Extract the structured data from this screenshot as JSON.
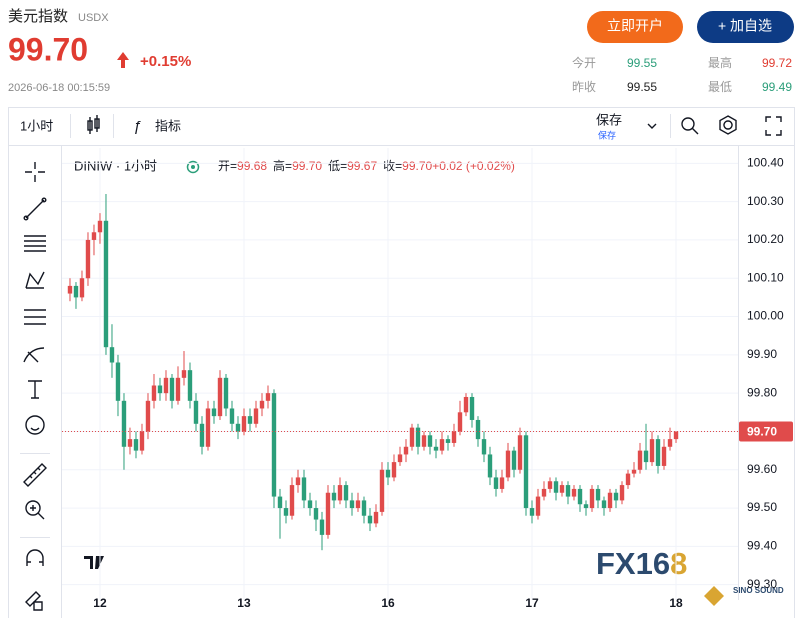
{
  "header": {
    "title": "美元指数",
    "symbol": "USDX",
    "price": "99.70",
    "change": "+0.15%",
    "datetime": "2026-06-18 00:15:59",
    "buttons": [
      "立即开户",
      "+ 加自选"
    ],
    "stats": [
      {
        "label": "今开",
        "value": "99.55"
      },
      {
        "label": "最高",
        "value": "99.72"
      },
      {
        "label": "昨收",
        "value": "99.55"
      },
      {
        "label": "最低",
        "value": "99.49"
      }
    ]
  },
  "toolbar": {
    "interval": "1小时",
    "indicators": "指标",
    "save": "保存",
    "save_sub": "保存"
  },
  "watermark": {
    "main": "FX16",
    "accent": "8",
    "sub": "SINO SOUND"
  },
  "chart_data": {
    "type": "candlestick",
    "title": "DINIW · 1小时",
    "ohlc_legend": [
      {
        "label": "开=",
        "value": "99.68"
      },
      {
        "label": "高=",
        "value": "99.70"
      },
      {
        "label": "低=",
        "value": "99.67"
      },
      {
        "label": "收=",
        "value": "99.70"
      },
      {
        "label": "",
        "value": "+0.02 (+0.02%)"
      }
    ],
    "up_color": "#e04b4b",
    "down_color": "#2b9e7a",
    "xlim": [
      -1.33,
      111.33
    ],
    "xticks": [
      {
        "value": 5,
        "label": "12"
      },
      {
        "value": 29,
        "label": "13"
      },
      {
        "value": 53,
        "label": "16"
      },
      {
        "value": 77,
        "label": "17"
      },
      {
        "value": 101,
        "label": "18"
      }
    ],
    "ylim": [
      99.26,
      100.44
    ],
    "yticks": [
      {
        "value": 99.3,
        "label": "99.30"
      },
      {
        "value": 99.4,
        "label": "99.40"
      },
      {
        "value": 99.5,
        "label": "99.50"
      },
      {
        "value": 99.6,
        "label": "99.60"
      },
      {
        "value": 99.7,
        "label": "99.70"
      },
      {
        "value": 99.8,
        "label": "99.80"
      },
      {
        "value": 99.9,
        "label": "99.90"
      },
      {
        "value": 100.0,
        "label": "100.00"
      },
      {
        "value": 100.1,
        "label": "100.10"
      },
      {
        "value": 100.2,
        "label": "100.20"
      },
      {
        "value": 100.3,
        "label": "100.30"
      },
      {
        "value": 100.4,
        "label": "100.40"
      }
    ],
    "grid": true,
    "last_price": 99.7,
    "last_price_label": "99.70",
    "candles": [
      [
        100.06,
        100.1,
        100.04,
        100.08
      ],
      [
        100.08,
        100.09,
        100.02,
        100.05
      ],
      [
        100.05,
        100.12,
        100.04,
        100.1
      ],
      [
        100.1,
        100.22,
        100.08,
        100.2
      ],
      [
        100.2,
        100.24,
        100.16,
        100.22
      ],
      [
        100.22,
        100.27,
        100.19,
        100.25
      ],
      [
        100.25,
        100.32,
        99.9,
        99.92
      ],
      [
        99.92,
        99.98,
        99.84,
        99.88
      ],
      [
        99.88,
        99.9,
        99.74,
        99.78
      ],
      [
        99.78,
        99.8,
        99.6,
        99.66
      ],
      [
        99.66,
        99.71,
        99.64,
        99.68
      ],
      [
        99.68,
        99.7,
        99.63,
        99.65
      ],
      [
        99.65,
        99.72,
        99.64,
        99.7
      ],
      [
        99.7,
        99.8,
        99.68,
        99.78
      ],
      [
        99.78,
        99.85,
        99.76,
        99.82
      ],
      [
        99.82,
        99.84,
        99.78,
        99.8
      ],
      [
        99.8,
        99.86,
        99.78,
        99.84
      ],
      [
        99.84,
        99.85,
        99.76,
        99.78
      ],
      [
        99.78,
        99.87,
        99.77,
        99.84
      ],
      [
        99.84,
        99.91,
        99.82,
        99.86
      ],
      [
        99.86,
        99.88,
        99.76,
        99.78
      ],
      [
        99.78,
        99.8,
        99.7,
        99.72
      ],
      [
        99.72,
        99.74,
        99.64,
        99.66
      ],
      [
        99.66,
        99.78,
        99.65,
        99.76
      ],
      [
        99.76,
        99.78,
        99.72,
        99.74
      ],
      [
        99.74,
        99.86,
        99.73,
        99.84
      ],
      [
        99.84,
        99.85,
        99.74,
        99.76
      ],
      [
        99.76,
        99.78,
        99.7,
        99.72
      ],
      [
        99.72,
        99.74,
        99.68,
        99.7
      ],
      [
        99.7,
        99.76,
        99.69,
        99.74
      ],
      [
        99.74,
        99.76,
        99.7,
        99.72
      ],
      [
        99.72,
        99.78,
        99.71,
        99.76
      ],
      [
        99.76,
        99.8,
        99.74,
        99.78
      ],
      [
        99.78,
        99.82,
        99.76,
        99.8
      ],
      [
        99.8,
        99.81,
        99.5,
        99.53
      ],
      [
        99.53,
        99.55,
        99.42,
        99.5
      ],
      [
        99.5,
        99.52,
        99.46,
        99.48
      ],
      [
        99.48,
        99.58,
        99.47,
        99.56
      ],
      [
        99.56,
        99.6,
        99.54,
        99.58
      ],
      [
        99.58,
        99.6,
        99.5,
        99.52
      ],
      [
        99.52,
        99.54,
        99.48,
        99.5
      ],
      [
        99.5,
        99.52,
        99.44,
        99.47
      ],
      [
        99.47,
        99.49,
        99.39,
        99.43
      ],
      [
        99.43,
        99.56,
        99.42,
        99.54
      ],
      [
        99.54,
        99.56,
        99.5,
        99.52
      ],
      [
        99.52,
        99.58,
        99.51,
        99.56
      ],
      [
        99.56,
        99.57,
        99.5,
        99.52
      ],
      [
        99.52,
        99.54,
        99.48,
        99.5
      ],
      [
        99.5,
        99.54,
        99.49,
        99.52
      ],
      [
        99.52,
        99.53,
        99.46,
        99.48
      ],
      [
        99.48,
        99.5,
        99.44,
        99.46
      ],
      [
        99.46,
        99.51,
        99.45,
        99.49
      ],
      [
        99.49,
        99.62,
        99.48,
        99.6
      ],
      [
        99.6,
        99.62,
        99.56,
        99.58
      ],
      [
        99.58,
        99.64,
        99.57,
        99.62
      ],
      [
        99.62,
        99.66,
        99.61,
        99.64
      ],
      [
        99.64,
        99.68,
        99.62,
        99.66
      ],
      [
        99.66,
        99.72,
        99.65,
        99.71
      ],
      [
        99.71,
        99.72,
        99.64,
        99.66
      ],
      [
        99.66,
        99.7,
        99.65,
        99.69
      ],
      [
        99.69,
        99.7,
        99.64,
        99.66
      ],
      [
        99.66,
        99.68,
        99.63,
        99.65
      ],
      [
        99.65,
        99.7,
        99.64,
        99.68
      ],
      [
        99.68,
        99.69,
        99.65,
        99.67
      ],
      [
        99.67,
        99.72,
        99.66,
        99.7
      ],
      [
        99.7,
        99.78,
        99.69,
        99.75
      ],
      [
        99.75,
        99.8,
        99.74,
        99.79
      ],
      [
        99.79,
        99.8,
        99.71,
        99.73
      ],
      [
        99.73,
        99.74,
        99.66,
        99.68
      ],
      [
        99.68,
        99.7,
        99.62,
        99.64
      ],
      [
        99.64,
        99.66,
        99.56,
        99.58
      ],
      [
        99.58,
        99.6,
        99.53,
        99.55
      ],
      [
        99.55,
        99.6,
        99.54,
        99.58
      ],
      [
        99.58,
        99.67,
        99.57,
        99.65
      ],
      [
        99.65,
        99.66,
        99.58,
        99.6
      ],
      [
        99.6,
        99.71,
        99.59,
        99.69
      ],
      [
        99.69,
        99.7,
        99.48,
        99.5
      ],
      [
        99.5,
        99.52,
        99.46,
        99.48
      ],
      [
        99.48,
        99.55,
        99.47,
        99.53
      ],
      [
        99.53,
        99.57,
        99.52,
        99.55
      ],
      [
        99.55,
        99.58,
        99.54,
        99.57
      ],
      [
        99.57,
        99.58,
        99.52,
        99.54
      ],
      [
        99.54,
        99.57,
        99.53,
        99.56
      ],
      [
        99.56,
        99.57,
        99.51,
        99.53
      ],
      [
        99.53,
        99.56,
        99.52,
        99.55
      ],
      [
        99.55,
        99.56,
        99.49,
        99.51
      ],
      [
        99.51,
        99.52,
        99.48,
        99.5
      ],
      [
        99.5,
        99.56,
        99.49,
        99.55
      ],
      [
        99.55,
        99.56,
        99.5,
        99.52
      ],
      [
        99.52,
        99.53,
        99.48,
        99.5
      ],
      [
        99.5,
        99.55,
        99.49,
        99.54
      ],
      [
        99.54,
        99.55,
        99.5,
        99.52
      ],
      [
        99.52,
        99.57,
        99.51,
        99.56
      ],
      [
        99.56,
        99.6,
        99.55,
        99.59
      ],
      [
        99.59,
        99.62,
        99.58,
        99.6
      ],
      [
        99.6,
        99.67,
        99.59,
        99.65
      ],
      [
        99.65,
        99.72,
        99.6,
        99.62
      ],
      [
        99.62,
        99.7,
        99.61,
        99.68
      ],
      [
        99.68,
        99.69,
        99.59,
        99.61
      ],
      [
        99.61,
        99.68,
        99.6,
        99.66
      ],
      [
        99.66,
        99.71,
        99.65,
        99.68
      ],
      [
        99.68,
        99.7,
        99.67,
        99.7
      ]
    ]
  }
}
